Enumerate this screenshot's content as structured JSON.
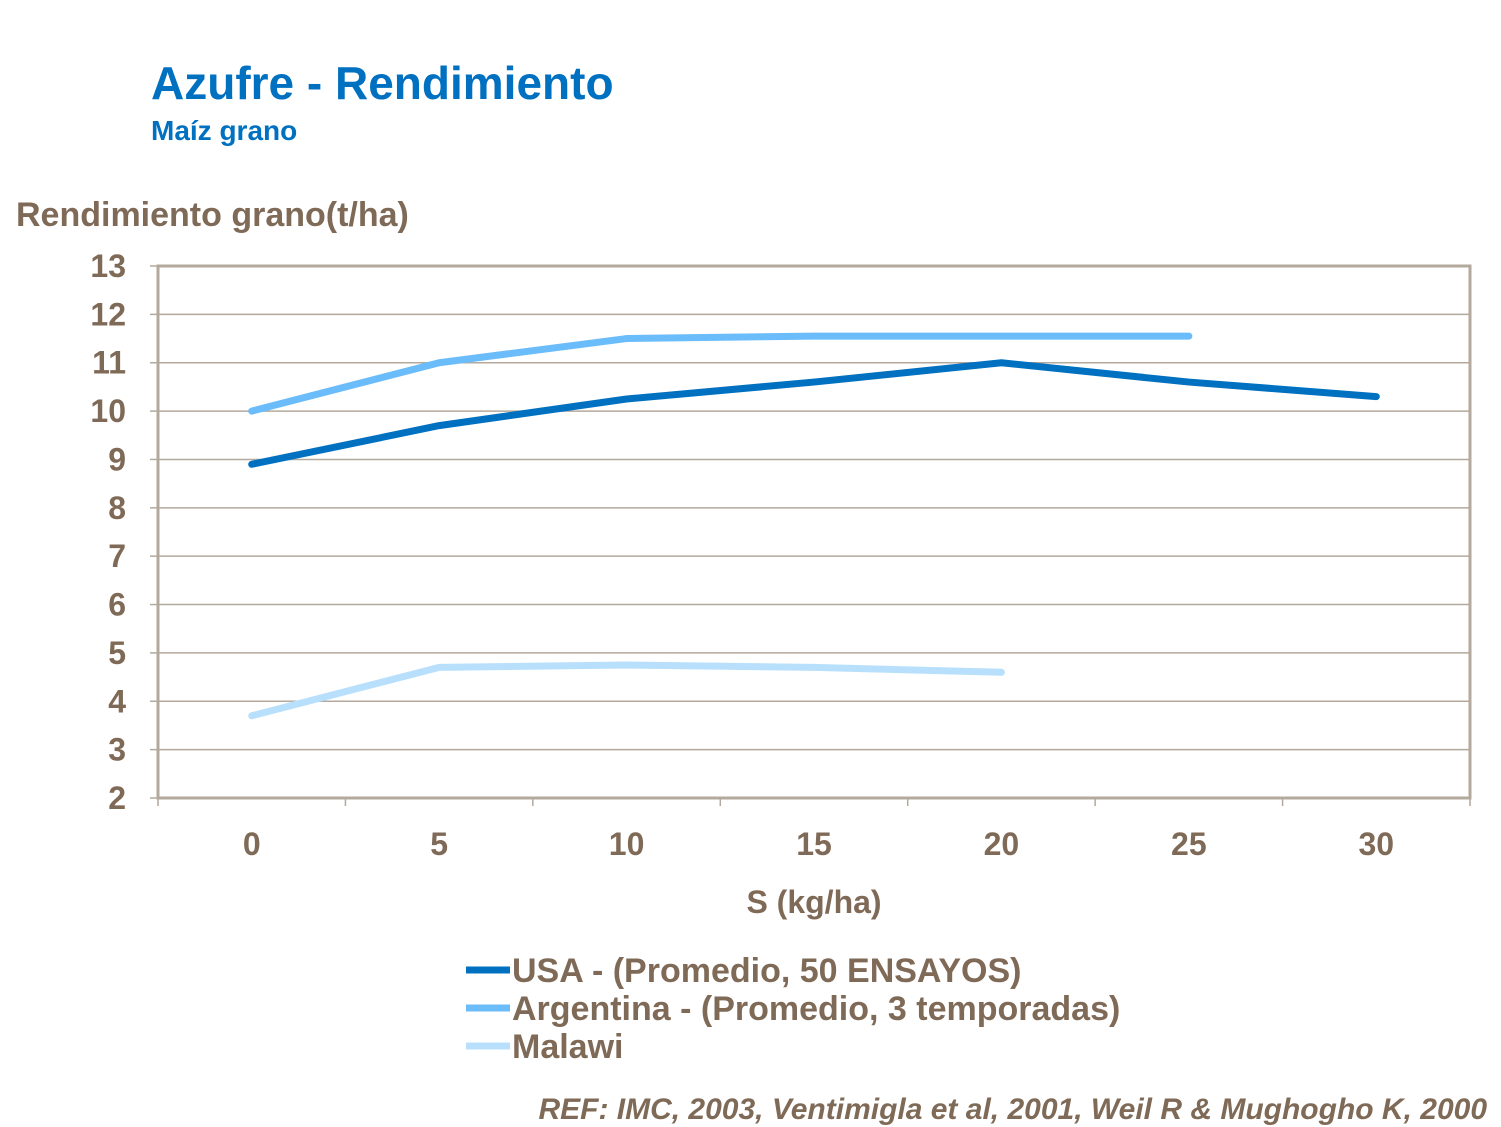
{
  "chart_data": {
    "type": "line",
    "title": "Azufre - Rendimiento",
    "subtitle": "Maíz grano",
    "ylabel": "Rendimiento grano(t/ha)",
    "xlabel": "S (kg/ha)",
    "categories": [
      "0",
      "5",
      "10",
      "15",
      "20",
      "25",
      "30"
    ],
    "ylim": [
      2,
      13
    ],
    "yticks": [
      2,
      3,
      4,
      5,
      6,
      7,
      8,
      9,
      10,
      11,
      12,
      13
    ],
    "grid": true,
    "legend": "bottom",
    "series": [
      {
        "name": "USA - (Promedio, 50 ENSAYOS)",
        "color": "#0070c0",
        "values": [
          8.9,
          9.7,
          10.25,
          10.6,
          11.0,
          10.6,
          10.3
        ]
      },
      {
        "name": "Argentina - (Promedio, 3 temporadas)",
        "color": "#6bbcfa",
        "values": [
          10.0,
          11.0,
          11.5,
          11.55,
          11.55,
          11.55,
          null
        ]
      },
      {
        "name": "Malawi",
        "color": "#b8e0fc",
        "values": [
          3.7,
          4.7,
          4.75,
          4.7,
          4.6,
          null,
          null
        ]
      }
    ],
    "annotation": "REF: IMC, 2003, Ventimigla et al, 2001, Weil R & Mughogho K, 2000"
  }
}
